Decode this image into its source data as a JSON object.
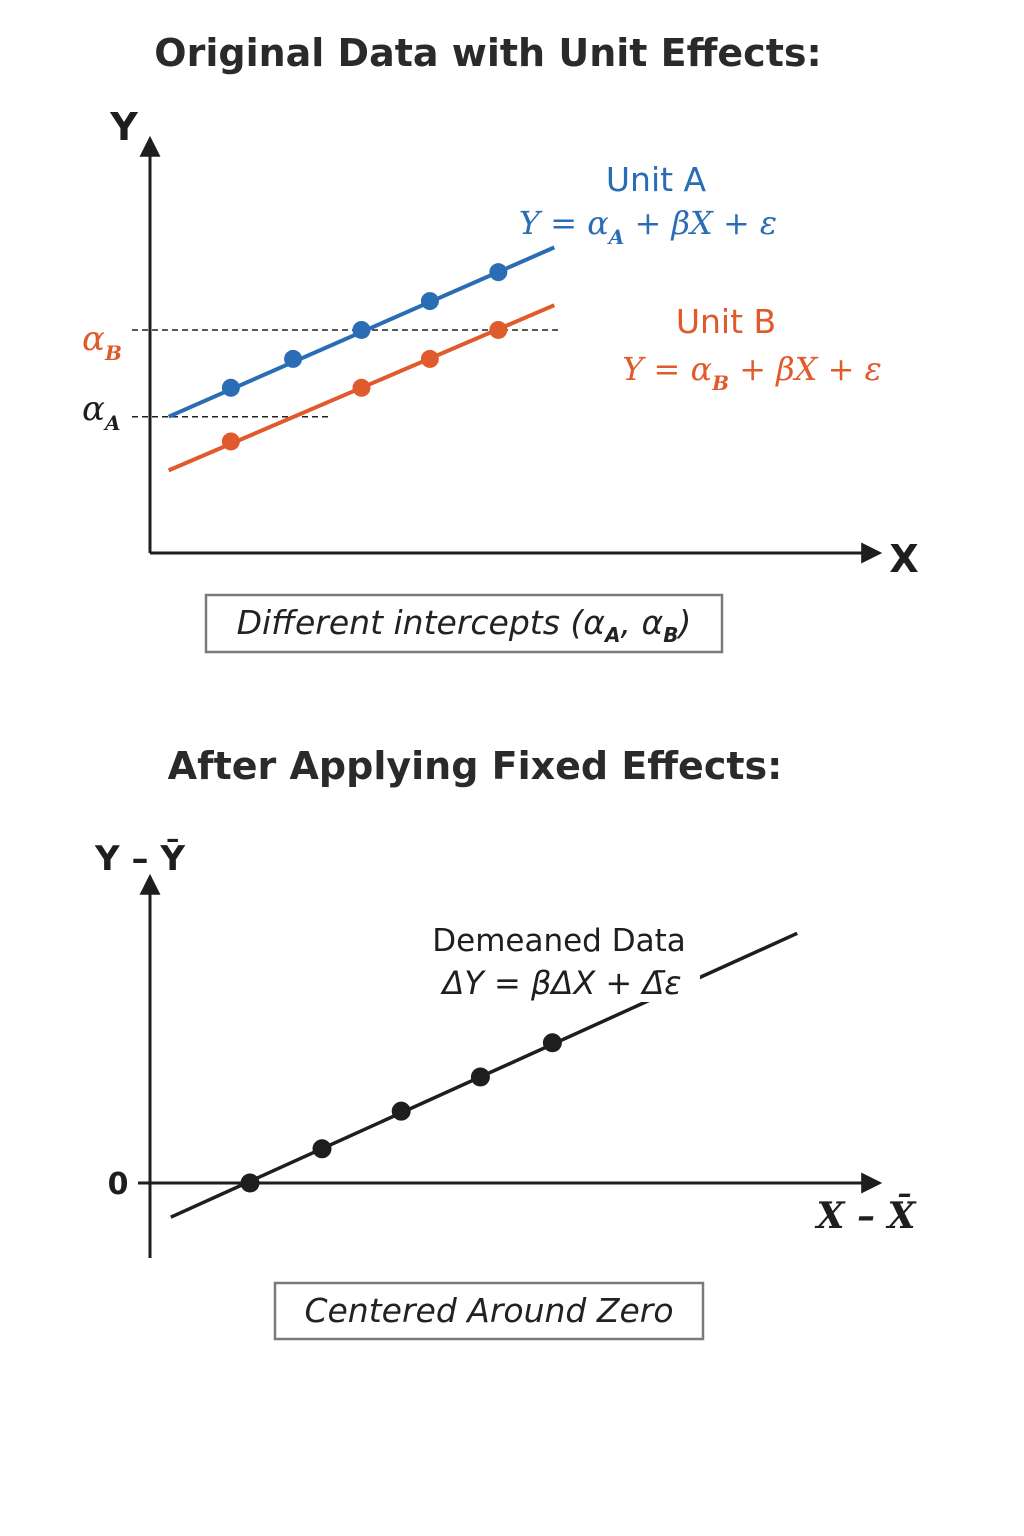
{
  "chart_data": [
    {
      "type": "line",
      "title": "Original Data with Unit Effects:",
      "ylabel": "Y",
      "xlabel": "X",
      "xlim": [
        0,
        10
      ],
      "ylim": [
        0,
        10
      ],
      "series": [
        {
          "name": "Unit A",
          "equation": {
            "pre": "Y = α",
            "sub": "A",
            "post": " + βX + ε"
          },
          "color": "#2a6db5",
          "line": {
            "x": [
              0.3,
              6.5
            ],
            "y": [
              3.3,
              7.4
            ]
          },
          "points": [
            {
              "x": [
                1.3,
                2.3,
                3.4,
                4.5,
                5.6
              ]
            },
            {
              "y": [
                4.0,
                4.7,
                5.4,
                6.1,
                6.8
              ]
            }
          ]
        },
        {
          "name": "Unit B",
          "equation": {
            "pre": "Y = α",
            "sub": "B",
            "post": " + βX + ε"
          },
          "color": "#e05a2b",
          "line": {
            "x": [
              0.3,
              6.5
            ],
            "y": [
              2.0,
              6.0
            ]
          },
          "points": [
            {
              "x": [
                1.3,
                3.4,
                4.5,
                5.6
              ]
            },
            {
              "y": [
                2.7,
                4.0,
                4.7,
                5.4
              ]
            }
          ]
        }
      ],
      "intercepts": [
        {
          "symbol": "α",
          "sub": "B",
          "y": 5.4,
          "x_end": 6.6,
          "color": "#e05a2b"
        },
        {
          "symbol": "α",
          "sub": "A",
          "y": 3.3,
          "x_end": 2.9,
          "color": "#1e1e1e"
        }
      ],
      "note": {
        "pre": "Different intercepts (α",
        "sub1": "A",
        "mid": ", α",
        "sub2": "B",
        "post": ")"
      }
    },
    {
      "type": "line",
      "title": "After Applying Fixed Effects:",
      "ylabel": "Y – Ȳ",
      "xlabel": "X – X̄",
      "tick_labels": [
        "0"
      ],
      "xlim": [
        -1.3,
        10
      ],
      "ylim": [
        -2,
        10
      ],
      "series": [
        {
          "name": "Demeaned Data",
          "equation": "ΔY = βΔX + Δ̄ε",
          "color": "#1e1e1e",
          "line": {
            "x": [
              -1.1,
              7.6
            ],
            "y": [
              -1.0,
              7.3
            ]
          },
          "points": [
            {
              "x": [
                0,
                1.0,
                2.1,
                3.2,
                4.2
              ]
            },
            {
              "y": [
                0,
                1.0,
                2.1,
                3.1,
                4.1
              ]
            }
          ]
        }
      ],
      "note": "Centered Around Zero"
    }
  ]
}
